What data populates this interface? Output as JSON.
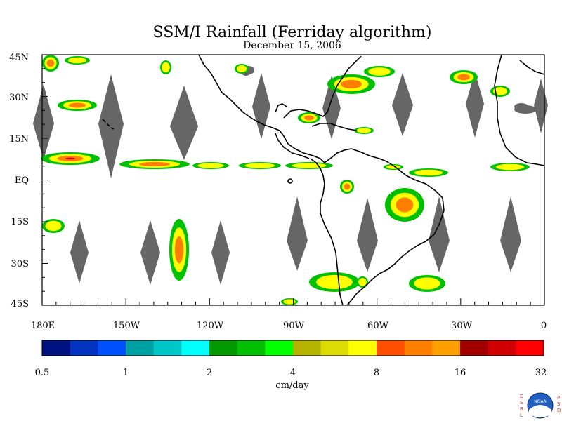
{
  "header": {
    "title": "SSM/I Rainfall (Ferriday algorithm)",
    "date": "December 15, 2006"
  },
  "map": {
    "lat_labels": [
      "45N",
      "30N",
      "15N",
      "EQ",
      "15S",
      "30S",
      "45S"
    ],
    "lon_labels": [
      "180E",
      "150W",
      "120W",
      "90W",
      "60W",
      "30W",
      "0"
    ],
    "no_data_color": "#666666",
    "land_outline_color": "#000000",
    "background_color": "#ffffff"
  },
  "colorbar": {
    "unit": "cm/day",
    "tick_labels": [
      "0.5",
      "1",
      "2",
      "4",
      "8",
      "16",
      "32"
    ],
    "colors": [
      "#001080",
      "#0033c0",
      "#0050ff",
      "#00a0a0",
      "#00c8c8",
      "#00ffff",
      "#009900",
      "#00c000",
      "#00ff00",
      "#b4b400",
      "#dcdc00",
      "#ffff00",
      "#ff5000",
      "#ff8000",
      "#ffa000",
      "#a00000",
      "#d00000",
      "#ff0000"
    ]
  },
  "footer": {
    "logo_text": "NOAA",
    "logo_left_letters": "ESRL",
    "logo_right_letters": "PSD"
  }
}
